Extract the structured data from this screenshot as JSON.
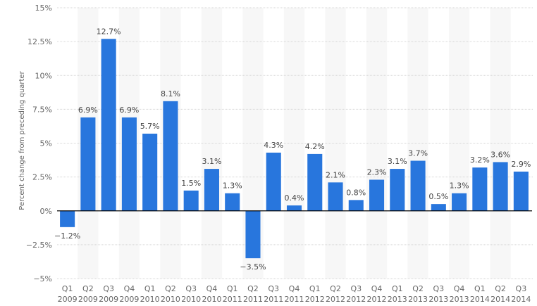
{
  "chart_data": {
    "type": "bar",
    "title": "",
    "xlabel": "",
    "ylabel": "Percent change from preceding quarter",
    "ylim": [
      -5,
      15
    ],
    "yticks": [
      15,
      12.5,
      10,
      7.5,
      5,
      2.5,
      0,
      -2.5,
      -5
    ],
    "ytick_labels": [
      "15%",
      "12.5%",
      "10%",
      "7.5%",
      "5%",
      "2.5%",
      "0%",
      "−2.5%",
      "−5%"
    ],
    "grid": true,
    "bar_color": "#2876dd",
    "categories": [
      [
        "Q1",
        "2009"
      ],
      [
        "Q2",
        "2009"
      ],
      [
        "Q3",
        "2009"
      ],
      [
        "Q4",
        "2009"
      ],
      [
        "Q1",
        "2010"
      ],
      [
        "Q2",
        "2010"
      ],
      [
        "Q3",
        "2010"
      ],
      [
        "Q4",
        "2010"
      ],
      [
        "Q1",
        "2011"
      ],
      [
        "Q2",
        "2011"
      ],
      [
        "Q3",
        "2011"
      ],
      [
        "Q4",
        "2011"
      ],
      [
        "Q1",
        "2012"
      ],
      [
        "Q2",
        "2012"
      ],
      [
        "Q3",
        "2012"
      ],
      [
        "Q4",
        "2012"
      ],
      [
        "Q1",
        "2013"
      ],
      [
        "Q2",
        "2013"
      ],
      [
        "Q3",
        "2013"
      ],
      [
        "Q4",
        "2013"
      ],
      [
        "Q1",
        "2014"
      ],
      [
        "Q2",
        "2014"
      ],
      [
        "Q3",
        "2014"
      ]
    ],
    "values": [
      -1.2,
      6.9,
      12.7,
      6.9,
      5.7,
      8.1,
      1.5,
      3.1,
      1.3,
      -3.5,
      4.3,
      0.4,
      4.2,
      2.1,
      0.8,
      2.3,
      3.1,
      3.7,
      0.5,
      1.3,
      3.2,
      3.6,
      2.9
    ],
    "value_labels": [
      "−1.2%",
      "6.9%",
      "12.7%",
      "6.9%",
      "5.7%",
      "8.1%",
      "1.5%",
      "3.1%",
      "1.3%",
      "−3.5%",
      "4.3%",
      "0.4%",
      "4.2%",
      "2.1%",
      "0.8%",
      "2.3%",
      "3.1%",
      "3.7%",
      "0.5%",
      "1.3%",
      "3.2%",
      "3.6%",
      "2.9%"
    ]
  }
}
